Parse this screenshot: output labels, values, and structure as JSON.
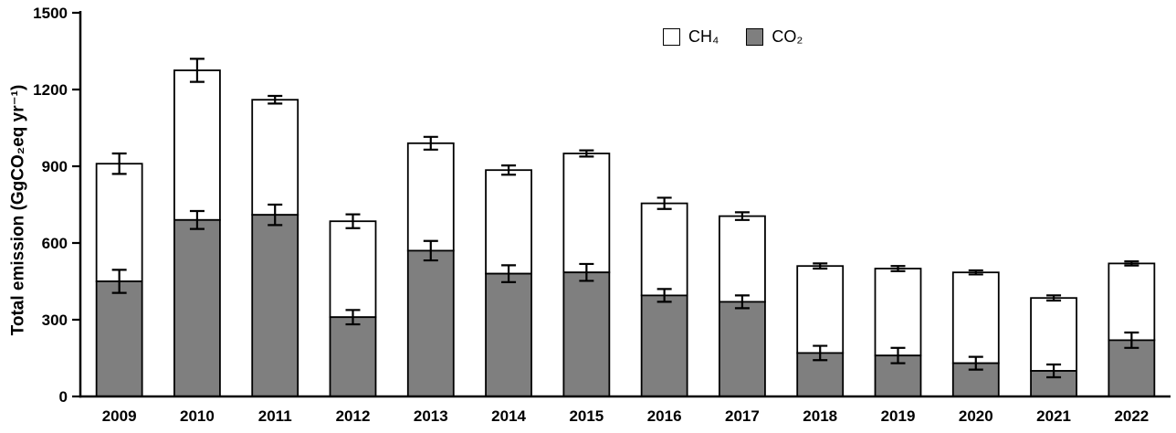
{
  "chart_data": {
    "type": "bar",
    "stacked": true,
    "title": "",
    "xlabel": "",
    "ylabel": "Total emission (GgCO₂eq yr⁻¹)",
    "ylim": [
      0,
      1500
    ],
    "yticks": [
      0,
      300,
      600,
      900,
      1200,
      1500
    ],
    "grid": false,
    "legend_position": "top-center",
    "bar_outline": "#000000",
    "error_bar_color": "#000000",
    "categories": [
      "2009",
      "2010",
      "2011",
      "2012",
      "2013",
      "2014",
      "2015",
      "2016",
      "2017",
      "2018",
      "2019",
      "2020",
      "2021",
      "2022"
    ],
    "series": [
      {
        "name": "CO2",
        "display": "CO₂",
        "color": "#7f7f7f",
        "values": [
          450,
          690,
          710,
          310,
          570,
          480,
          485,
          395,
          370,
          170,
          160,
          130,
          100,
          220
        ],
        "errors": [
          45,
          35,
          40,
          28,
          38,
          33,
          33,
          25,
          25,
          28,
          30,
          25,
          25,
          30
        ]
      },
      {
        "name": "CH4",
        "display": "CH₄",
        "color": "#ffffff",
        "values": [
          460,
          585,
          450,
          375,
          420,
          405,
          465,
          360,
          335,
          340,
          340,
          355,
          285,
          300
        ]
      }
    ],
    "totals": [
      910,
      1275,
      1160,
      685,
      990,
      885,
      950,
      755,
      705,
      510,
      500,
      485,
      385,
      520
    ],
    "total_errors": [
      40,
      45,
      15,
      27,
      25,
      18,
      12,
      22,
      15,
      10,
      10,
      8,
      10,
      8
    ]
  }
}
